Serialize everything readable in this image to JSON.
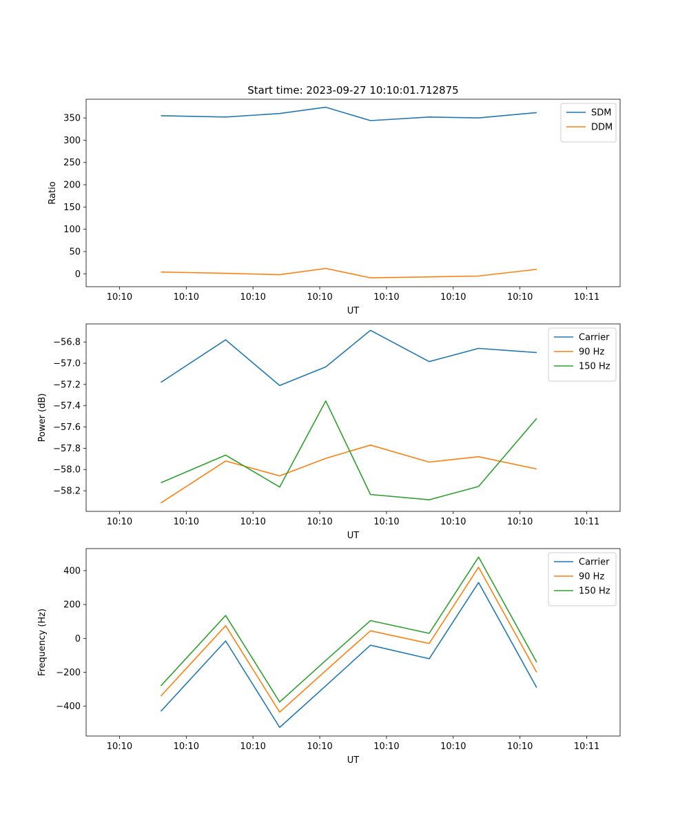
{
  "chart_data": [
    {
      "type": "line",
      "title": "Start time: 2023-09-27 10:10:01.712875",
      "xlabel": "UT",
      "ylabel": "Ratio",
      "xlim": [
        0,
        800
      ],
      "ylim": [
        -29,
        392
      ],
      "xticks": [
        {
          "value": 50,
          "label": "10:10"
        },
        {
          "value": 150,
          "label": "10:10"
        },
        {
          "value": 250,
          "label": "10:10"
        },
        {
          "value": 350,
          "label": "10:10"
        },
        {
          "value": 450,
          "label": "10:10"
        },
        {
          "value": 550,
          "label": "10:10"
        },
        {
          "value": 650,
          "label": "10:10"
        },
        {
          "value": 750,
          "label": "10:11"
        }
      ],
      "yticks": [
        {
          "value": 0,
          "label": "0"
        },
        {
          "value": 50,
          "label": "50"
        },
        {
          "value": 100,
          "label": "100"
        },
        {
          "value": 150,
          "label": "150"
        },
        {
          "value": 200,
          "label": "200"
        },
        {
          "value": 250,
          "label": "250"
        },
        {
          "value": 300,
          "label": "300"
        },
        {
          "value": 350,
          "label": "350"
        }
      ],
      "legend_position": "top-right",
      "x": [
        112,
        209,
        290,
        359,
        426,
        514,
        588,
        675
      ],
      "series": [
        {
          "name": "SDM",
          "color": "#1f77b4",
          "values": [
            355,
            352,
            360,
            374,
            344,
            352,
            350,
            362
          ]
        },
        {
          "name": "DDM",
          "color": "#ff7f0e",
          "values": [
            4,
            1,
            -2,
            12,
            -9,
            -7,
            -5,
            10
          ]
        }
      ]
    },
    {
      "type": "line",
      "title": "",
      "xlabel": "UT",
      "ylabel": "Power (dB)",
      "xlim": [
        0,
        800
      ],
      "ylim": [
        -58.394,
        -56.63
      ],
      "xticks": [
        {
          "value": 50,
          "label": "10:10"
        },
        {
          "value": 150,
          "label": "10:10"
        },
        {
          "value": 250,
          "label": "10:10"
        },
        {
          "value": 350,
          "label": "10:10"
        },
        {
          "value": 450,
          "label": "10:10"
        },
        {
          "value": 550,
          "label": "10:10"
        },
        {
          "value": 650,
          "label": "10:10"
        },
        {
          "value": 750,
          "label": "10:11"
        }
      ],
      "yticks": [
        {
          "value": -58.2,
          "label": "−58.2"
        },
        {
          "value": -58.0,
          "label": "−58.0"
        },
        {
          "value": -57.8,
          "label": "−57.8"
        },
        {
          "value": -57.6,
          "label": "−57.6"
        },
        {
          "value": -57.4,
          "label": "−57.4"
        },
        {
          "value": -57.2,
          "label": "−57.2"
        },
        {
          "value": -57.0,
          "label": "−57.0"
        },
        {
          "value": -56.8,
          "label": "−56.8"
        }
      ],
      "legend_position": "top-right",
      "x": [
        112,
        209,
        290,
        359,
        426,
        514,
        588,
        675
      ],
      "series": [
        {
          "name": "Carrier",
          "color": "#1f77b4",
          "values": [
            -57.18,
            -56.78,
            -57.21,
            -57.035,
            -56.69,
            -56.985,
            -56.86,
            -56.9
          ]
        },
        {
          "name": "90 Hz",
          "color": "#ff7f0e",
          "values": [
            -58.315,
            -57.92,
            -58.06,
            -57.895,
            -57.77,
            -57.93,
            -57.88,
            -57.995
          ]
        },
        {
          "name": "150 Hz",
          "color": "#2ca02c",
          "values": [
            -58.125,
            -57.865,
            -58.165,
            -57.355,
            -58.235,
            -58.285,
            -58.16,
            -57.52
          ]
        }
      ]
    },
    {
      "type": "line",
      "title": "",
      "xlabel": "UT",
      "ylabel": "Frequency (Hz)",
      "xlim": [
        0,
        800
      ],
      "ylim": [
        -576,
        530
      ],
      "xticks": [
        {
          "value": 50,
          "label": "10:10"
        },
        {
          "value": 150,
          "label": "10:10"
        },
        {
          "value": 250,
          "label": "10:10"
        },
        {
          "value": 350,
          "label": "10:10"
        },
        {
          "value": 450,
          "label": "10:10"
        },
        {
          "value": 550,
          "label": "10:10"
        },
        {
          "value": 650,
          "label": "10:10"
        },
        {
          "value": 750,
          "label": "10:11"
        }
      ],
      "yticks": [
        {
          "value": -400,
          "label": "−400"
        },
        {
          "value": -200,
          "label": "−200"
        },
        {
          "value": 0,
          "label": "0"
        },
        {
          "value": 200,
          "label": "200"
        },
        {
          "value": 400,
          "label": "400"
        }
      ],
      "legend_position": "top-right",
      "x": [
        112,
        209,
        290,
        359,
        426,
        514,
        588,
        675
      ],
      "series": [
        {
          "name": "Carrier",
          "color": "#1f77b4",
          "values": [
            -430,
            -15,
            -525,
            -280,
            -40,
            -120,
            330,
            -290
          ]
        },
        {
          "name": "90 Hz",
          "color": "#ff7f0e",
          "values": [
            -340,
            75,
            -435,
            -190,
            45,
            -30,
            420,
            -200
          ]
        },
        {
          "name": "150 Hz",
          "color": "#2ca02c",
          "values": [
            -280,
            135,
            -375,
            -130,
            105,
            30,
            480,
            -140
          ]
        }
      ]
    }
  ]
}
